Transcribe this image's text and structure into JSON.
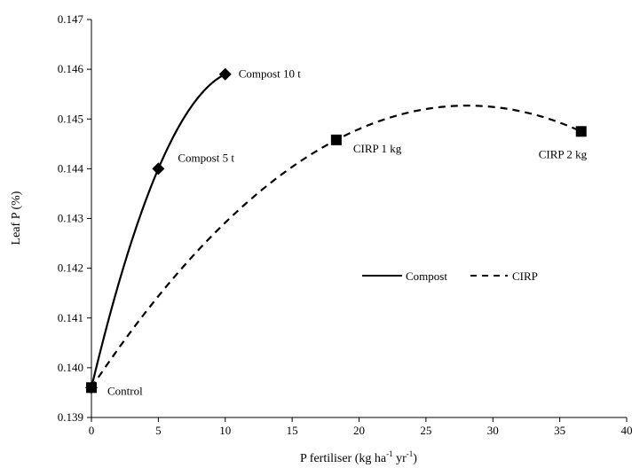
{
  "chart_data": {
    "type": "line",
    "xlabel": "P fertiliser (kg ha",
    "xlabel_sup1": "-1",
    "xlabel_mid": " yr",
    "xlabel_sup2": "-1",
    "xlabel_end": ")",
    "ylabel": "Leaf P (%)",
    "xlim": [
      0,
      40
    ],
    "ylim": [
      0.139,
      0.147
    ],
    "xticks": [
      "0",
      "5",
      "10",
      "15",
      "20",
      "25",
      "30",
      "35",
      "40"
    ],
    "yticks": [
      "0.139",
      "0.140",
      "0.141",
      "0.142",
      "0.143",
      "0.144",
      "0.145",
      "0.146",
      "0.147"
    ],
    "grid": false,
    "legend_position": "center-right",
    "series": [
      {
        "name": "Compost",
        "line_style": "solid",
        "marker": "diamond",
        "points": [
          {
            "x": 0,
            "y": 0.1396
          },
          {
            "x": 5,
            "y": 0.144
          },
          {
            "x": 10,
            "y": 0.1459
          }
        ],
        "point_labels": [
          "",
          "Compost 5 t",
          "Compost 10 t"
        ]
      },
      {
        "name": "CIRP",
        "line_style": "dashed",
        "marker": "square",
        "points": [
          {
            "x": 0,
            "y": 0.1396
          },
          {
            "x": 18.3,
            "y": 0.14458
          },
          {
            "x": 36.6,
            "y": 0.14475
          }
        ],
        "point_labels": [
          "Control",
          "CIRP 1 kg",
          "CIRP 2 kg"
        ]
      }
    ]
  }
}
